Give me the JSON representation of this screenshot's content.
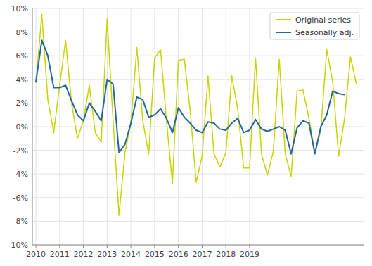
{
  "chart_data": {
    "type": "line",
    "series": [
      {
        "name": "Original series",
        "color": "#c8d400",
        "x": [
          2010,
          2010.25,
          2010.5,
          2010.75,
          2011,
          2011.25,
          2011.5,
          2011.75,
          2012,
          2012.25,
          2012.5,
          2012.75,
          2013,
          2013.25,
          2013.5,
          2013.75,
          2014,
          2014.25,
          2014.5,
          2014.75,
          2015,
          2015.25,
          2015.5,
          2015.75,
          2016,
          2016.25,
          2016.5,
          2016.75,
          2017,
          2017.25,
          2017.5,
          2017.75,
          2018,
          2018.25,
          2018.5,
          2018.75,
          2019,
          2019.25,
          2019.5,
          2019.75,
          2020,
          2020.25,
          2020.5,
          2020.75,
          2021,
          2021.25,
          2021.5,
          2021.75,
          2022,
          2022.25,
          2022.5,
          2022.75,
          2023,
          2023.25,
          2023.5
        ],
        "values": [
          3.7,
          9.5,
          2.3,
          -0.5,
          3.5,
          7.3,
          2.0,
          -1.0,
          0.5,
          3.5,
          -0.5,
          -1.3,
          9.1,
          0.5,
          -7.5,
          -2.2,
          0.3,
          6.7,
          0.5,
          -2.3,
          5.8,
          6.5,
          0.5,
          -4.8,
          5.6,
          5.7,
          1.3,
          -4.7,
          -2.5,
          4.3,
          -2.3,
          -3.4,
          -2.2,
          4.3,
          1.5,
          -3.5,
          -3.5,
          5.8,
          -2.3,
          -4.1,
          -2.1,
          5.7,
          -2.3,
          -4.2,
          3.0,
          3.1,
          0.7,
          -2.2,
          -0.3,
          6.5,
          3.8,
          -2.5,
          0.7,
          5.9,
          3.6
        ]
      },
      {
        "name": "Seasonally adj.",
        "color": "#2266a0",
        "x": [
          2010,
          2010.25,
          2010.5,
          2010.75,
          2011,
          2011.25,
          2011.5,
          2011.75,
          2012,
          2012.25,
          2012.5,
          2012.75,
          2013,
          2013.25,
          2013.5,
          2013.75,
          2014,
          2014.25,
          2014.5,
          2014.75,
          2015,
          2015.25,
          2015.5,
          2015.75,
          2016,
          2016.25,
          2016.5,
          2016.75,
          2017,
          2017.25,
          2017.5,
          2017.75,
          2018,
          2018.25,
          2018.5,
          2018.75,
          2019,
          2019.25,
          2019.5,
          2019.75,
          2020,
          2020.25,
          2020.5,
          2020.75,
          2021,
          2021.25,
          2021.5,
          2021.75,
          2022,
          2022.25,
          2022.5,
          2022.75,
          2023
        ],
        "values": [
          3.8,
          7.3,
          6.0,
          3.3,
          3.3,
          3.5,
          2.2,
          1.0,
          0.5,
          2.0,
          1.3,
          0.5,
          4.0,
          3.6,
          -2.2,
          -1.5,
          0.3,
          2.5,
          2.3,
          0.8,
          1.0,
          1.5,
          0.7,
          -0.5,
          1.6,
          0.8,
          0.3,
          -0.3,
          -0.5,
          0.4,
          0.3,
          -0.2,
          -0.3,
          0.3,
          0.7,
          -0.5,
          -0.3,
          0.6,
          -0.2,
          -0.4,
          -0.2,
          0.0,
          -0.3,
          -2.3,
          -0.1,
          0.5,
          0.3,
          -2.3,
          0.0,
          1.0,
          3.0,
          2.8,
          2.7
        ]
      }
    ],
    "xlim": [
      2009.85,
      2023.8
    ],
    "xticks": [
      2010,
      2011,
      2012,
      2013,
      2014,
      2015,
      2016,
      2017,
      2018,
      2019
    ],
    "ylim": [
      -10,
      10
    ],
    "yticks": [
      {
        "value": -10,
        "label": "-10%"
      },
      {
        "value": -8,
        "label": "-8%"
      },
      {
        "value": -6,
        "label": "-6%"
      },
      {
        "value": -4,
        "label": "-4%"
      },
      {
        "value": -2,
        "label": "-2%"
      },
      {
        "value": 0,
        "label": "0%"
      },
      {
        "value": 2,
        "label": "2%"
      },
      {
        "value": 4,
        "label": "4%"
      },
      {
        "value": 6,
        "label": "6%"
      },
      {
        "value": 8,
        "label": "8%"
      },
      {
        "value": 10,
        "label": "10%"
      }
    ],
    "grid": true,
    "legend": "upper right"
  }
}
